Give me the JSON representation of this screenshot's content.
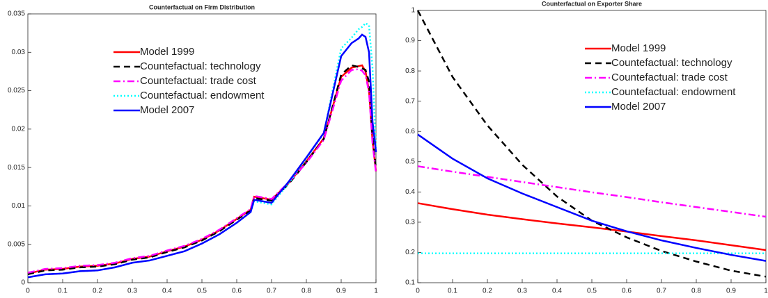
{
  "chart_data": [
    {
      "type": "line",
      "title": "Counterfactual on  Firm Distribution",
      "x": [
        0,
        0.05,
        0.1,
        0.15,
        0.2,
        0.25,
        0.3,
        0.35,
        0.4,
        0.45,
        0.5,
        0.55,
        0.6,
        0.64,
        0.65,
        0.7,
        0.75,
        0.8,
        0.85,
        0.9,
        0.93,
        0.95,
        0.96,
        0.97,
        0.98,
        0.99,
        1
      ],
      "xlim": [
        0,
        1
      ],
      "xticks": [
        0,
        0.1,
        0.2,
        0.3,
        0.4,
        0.5,
        0.6,
        0.7,
        0.8,
        0.9,
        1
      ],
      "ylim": [
        0,
        0.035
      ],
      "yticks": [
        0,
        0.005,
        0.01,
        0.015,
        0.02,
        0.025,
        0.03,
        0.035
      ],
      "series": [
        {
          "name": "Model 1999",
          "color": "#ff0000",
          "style": "solid",
          "values": [
            0.0012,
            0.0017,
            0.0018,
            0.0021,
            0.0022,
            0.0025,
            0.0031,
            0.0034,
            0.0041,
            0.0047,
            0.0056,
            0.0068,
            0.0083,
            0.0095,
            0.0112,
            0.0108,
            0.013,
            0.0158,
            0.0188,
            0.0268,
            0.028,
            0.0282,
            0.0283,
            0.0275,
            0.025,
            0.0185,
            0.0145
          ]
        },
        {
          "name": "Countefactual: technology",
          "color": "#000000",
          "style": "dashed",
          "values": [
            0.0011,
            0.0016,
            0.0017,
            0.002,
            0.0021,
            0.0024,
            0.003,
            0.0033,
            0.004,
            0.0046,
            0.0055,
            0.0067,
            0.0082,
            0.0094,
            0.011,
            0.0107,
            0.0129,
            0.0157,
            0.0187,
            0.0271,
            0.0283,
            0.0281,
            0.0279,
            0.0277,
            0.0262,
            0.019,
            0.0148
          ]
        },
        {
          "name": "Countefactual: trade cost",
          "color": "#ff00ff",
          "style": "dashdot",
          "values": [
            0.0013,
            0.0018,
            0.0019,
            0.0022,
            0.0023,
            0.0026,
            0.0032,
            0.0035,
            0.0042,
            0.0048,
            0.0057,
            0.0069,
            0.0084,
            0.0096,
            0.0113,
            0.0109,
            0.0131,
            0.0156,
            0.0186,
            0.0263,
            0.0277,
            0.0278,
            0.0276,
            0.027,
            0.0248,
            0.0182,
            0.0143
          ]
        },
        {
          "name": "Countefactual: endowment",
          "color": "#00ffff",
          "style": "dotted",
          "values": [
            0.0007,
            0.0011,
            0.0012,
            0.0015,
            0.0016,
            0.002,
            0.0026,
            0.0029,
            0.0035,
            0.0041,
            0.0051,
            0.0063,
            0.0078,
            0.0092,
            0.0106,
            0.0102,
            0.013,
            0.0162,
            0.0194,
            0.0305,
            0.0319,
            0.033,
            0.0333,
            0.0338,
            0.0335,
            0.028,
            0.017
          ]
        },
        {
          "name": "Model 2007",
          "color": "#0000ff",
          "style": "solid",
          "values": [
            0.0007,
            0.0011,
            0.0012,
            0.0015,
            0.0016,
            0.002,
            0.0026,
            0.0029,
            0.0035,
            0.0041,
            0.0051,
            0.0063,
            0.0078,
            0.0092,
            0.0108,
            0.0104,
            0.0132,
            0.0163,
            0.0195,
            0.0295,
            0.0312,
            0.0318,
            0.0323,
            0.032,
            0.03,
            0.021,
            0.017
          ]
        }
      ]
    },
    {
      "type": "line",
      "title": "Counterfactual on Exporter Share",
      "x": [
        0,
        0.1,
        0.2,
        0.3,
        0.4,
        0.5,
        0.6,
        0.7,
        0.8,
        0.9,
        1
      ],
      "xlim": [
        0,
        1
      ],
      "xticks": [
        0,
        0.1,
        0.2,
        0.3,
        0.4,
        0.5,
        0.6,
        0.7,
        0.8,
        0.9,
        1
      ],
      "ylim": [
        0.1,
        1
      ],
      "yticks": [
        0.1,
        0.2,
        0.3,
        0.4,
        0.5,
        0.6,
        0.7,
        0.8,
        0.9,
        1
      ],
      "series": [
        {
          "name": "Model 1999",
          "color": "#ff0000",
          "style": "solid",
          "values": [
            0.363,
            0.343,
            0.325,
            0.31,
            0.296,
            0.283,
            0.269,
            0.254,
            0.24,
            0.224,
            0.208
          ]
        },
        {
          "name": "Countefactual: technology",
          "color": "#000000",
          "style": "dashed",
          "values": [
            1,
            0.78,
            0.62,
            0.49,
            0.385,
            0.305,
            0.25,
            0.205,
            0.17,
            0.14,
            0.12
          ]
        },
        {
          "name": "Countefactual: trade cost",
          "color": "#ff00ff",
          "style": "dashdot",
          "values": [
            0.485,
            0.467,
            0.45,
            0.433,
            0.416,
            0.399,
            0.383,
            0.366,
            0.35,
            0.334,
            0.318
          ]
        },
        {
          "name": "Countefactual: endowment",
          "color": "#00ffff",
          "style": "dotted",
          "values": [
            0.197,
            0.197,
            0.197,
            0.197,
            0.197,
            0.197,
            0.197,
            0.197,
            0.197,
            0.197,
            0.197
          ]
        },
        {
          "name": "Model 2007",
          "color": "#0000ff",
          "style": "solid",
          "values": [
            0.59,
            0.51,
            0.445,
            0.395,
            0.35,
            0.305,
            0.27,
            0.24,
            0.215,
            0.192,
            0.172
          ]
        }
      ]
    }
  ]
}
